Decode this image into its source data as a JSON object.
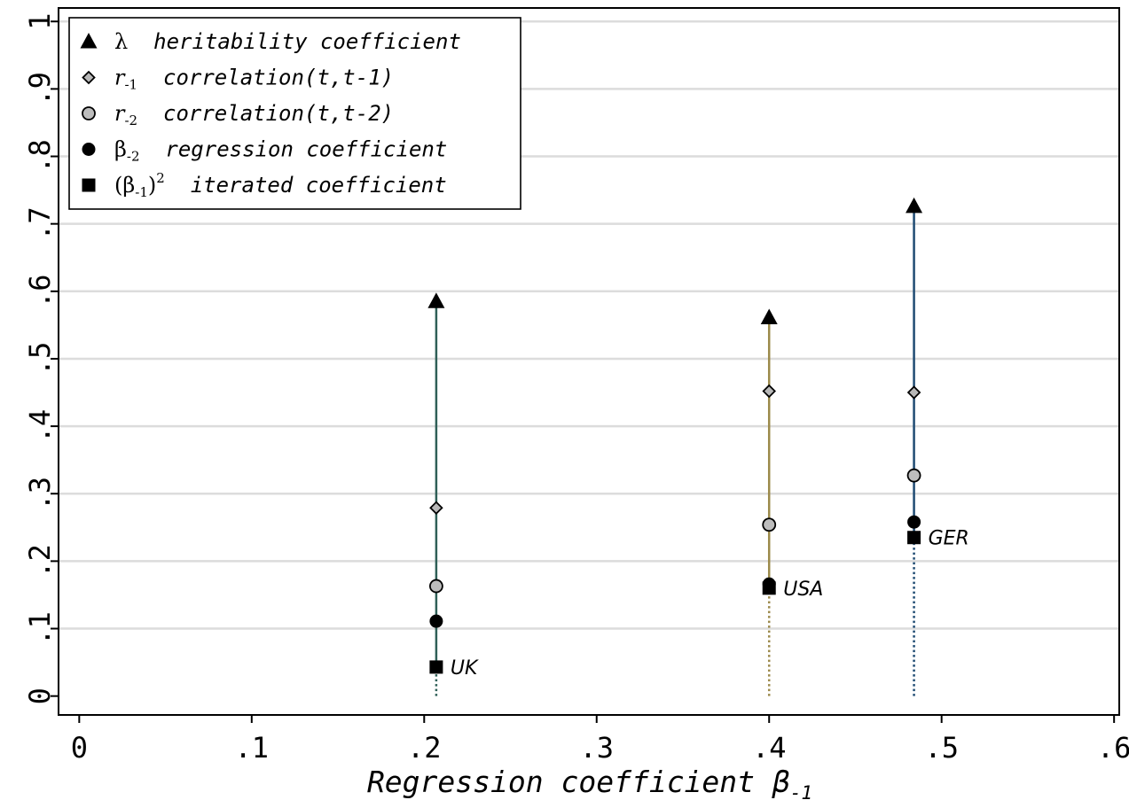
{
  "chart_data": {
    "type": "scatter",
    "title": "",
    "xlabel": "Regression coefficient β",
    "xlabel_sub": "-1",
    "ylabel": "",
    "xlim": [
      -0.012,
      0.603
    ],
    "ylim": [
      -0.028,
      1.02
    ],
    "x_ticks": [
      0,
      0.1,
      0.2,
      0.3,
      0.4,
      0.5,
      0.6
    ],
    "x_tick_labels": [
      "0",
      ".1",
      ".2",
      ".3",
      ".4",
      ".5",
      ".6"
    ],
    "y_ticks": [
      0,
      0.1,
      0.2,
      0.3,
      0.4,
      0.5,
      0.6,
      0.7,
      0.8,
      0.9,
      1
    ],
    "y_tick_labels": [
      "0",
      ".1",
      ".2",
      ".3",
      ".4",
      ".5",
      ".6",
      ".7",
      ".8",
      ".9",
      "1"
    ],
    "grid": true,
    "legend_position": "top-left",
    "legend": [
      {
        "key": "lambda",
        "marker": "triangle",
        "symbol": "λ",
        "sub": "",
        "sup": "",
        "text": "heritability coefficient"
      },
      {
        "key": "r1",
        "marker": "diamond",
        "symbol": "r",
        "sub": "-1",
        "sup": "",
        "text": "correlation(t,t-1)"
      },
      {
        "key": "r2",
        "marker": "circle-gray",
        "symbol": "r",
        "sub": "-2",
        "sup": "",
        "text": "correlation(t,t-2)"
      },
      {
        "key": "beta2",
        "marker": "circle-black",
        "symbol": "β",
        "sub": "-2",
        "sup": "",
        "text": "regression coefficient"
      },
      {
        "key": "beta1sq",
        "marker": "square",
        "symbol": "(β",
        "sub": "-1",
        "sup": "2",
        "text": "iterated coefficient"
      }
    ],
    "countries": [
      {
        "name": "UK",
        "x": 0.207,
        "lambda": 0.585,
        "r1": 0.279,
        "r2": 0.163,
        "beta2": 0.111,
        "beta1sq": 0.043,
        "color": "#2f5f57"
      },
      {
        "name": "USA",
        "x": 0.4,
        "lambda": 0.561,
        "r1": 0.452,
        "r2": 0.254,
        "beta2": 0.166,
        "beta1sq": 0.16,
        "color": "#9c8a4b"
      },
      {
        "name": "GER",
        "x": 0.484,
        "lambda": 0.726,
        "r1": 0.45,
        "r2": 0.327,
        "beta2": 0.258,
        "beta1sq": 0.235,
        "color": "#1f4b73"
      }
    ]
  }
}
